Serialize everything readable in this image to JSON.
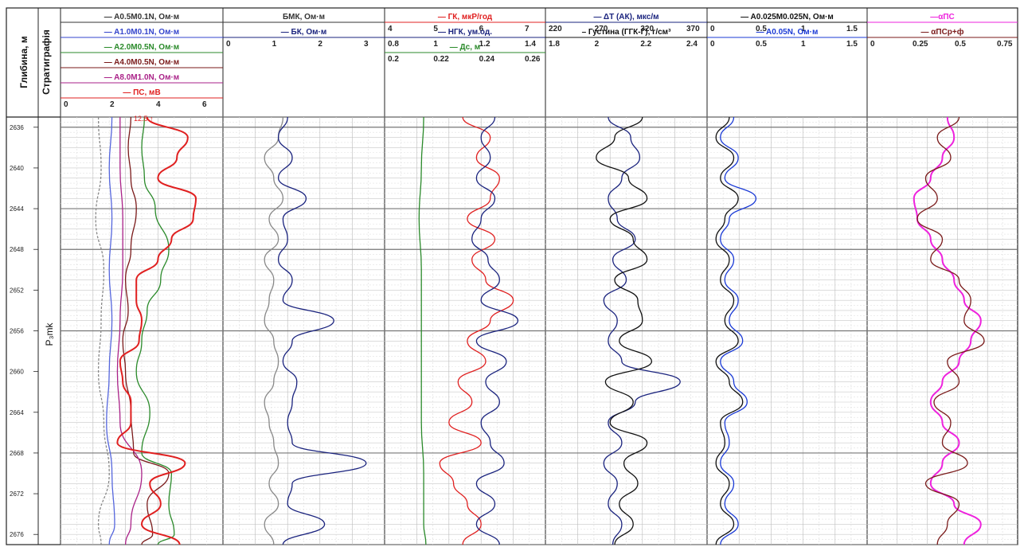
{
  "chart_data": {
    "type": "line",
    "title": "",
    "depth_axis": {
      "label": "Глибина, м",
      "unit": "м",
      "range": [
        2635,
        2677
      ],
      "major_ticks": [
        "2636",
        "2640",
        "2644",
        "2648",
        "2652",
        "2656",
        "2660",
        "2664",
        "2668",
        "2672",
        "2676"
      ],
      "major_tick_values": [
        2636,
        2640,
        2644,
        2648,
        2652,
        2656,
        2660,
        2664,
        2668,
        2672,
        2676
      ],
      "thick_line_depths": [
        2636,
        2644,
        2648,
        2656,
        2668
      ],
      "grid": true
    },
    "stratigraphy": {
      "label": "Стратиграфія",
      "unit_name": "P₃mk"
    },
    "tracks": [
      {
        "id": "track-resistivity",
        "scales": [
          {
            "label": "— A0.5M0.1N, Ом·м",
            "color": "#333333"
          },
          {
            "label": "— A1.0M0.1N, Ом·м",
            "color": "#3344cc"
          },
          {
            "label": "— A2.0M0.5N, Ом·м",
            "color": "#2a8a2a"
          },
          {
            "label": "— A4.0M0.5N, Ом·м",
            "color": "#7a1a1a"
          },
          {
            "label": "— A8.0M1.0N, Ом·м",
            "color": "#aa2288"
          },
          {
            "label": "— ПС, мВ",
            "color": "#e02020",
            "ticks": [
              "0",
              "2",
              "4",
              "6"
            ]
          }
        ],
        "annotation": "12.5 ↑",
        "series": [
          {
            "name": "A0.5M0.1N",
            "color": "#888888",
            "dashed": true,
            "depth": [
              2635,
              2640,
              2645,
              2650,
              2655,
              2660,
              2665,
              2670,
              2675,
              2677
            ],
            "value": [
              1.4,
              1.5,
              1.3,
              1.6,
              1.5,
              1.4,
              1.6,
              1.8,
              1.4,
              1.5
            ]
          },
          {
            "name": "A1.0M0.1N",
            "color": "#5566dd",
            "depth": [
              2635,
              2640,
              2645,
              2650,
              2655,
              2660,
              2665,
              2670,
              2675,
              2677
            ],
            "value": [
              1.9,
              1.8,
              1.9,
              1.8,
              1.9,
              1.8,
              1.7,
              1.9,
              2.0,
              1.8
            ]
          },
          {
            "name": "A2.0M0.5N",
            "color": "#2a8a2a",
            "depth": [
              2635,
              2638,
              2641,
              2644,
              2648,
              2651,
              2654,
              2657,
              2660,
              2664,
              2668,
              2670,
              2673,
              2676,
              2677
            ],
            "value": [
              3.1,
              3.0,
              3.1,
              3.5,
              4.0,
              3.7,
              3.2,
              3.0,
              2.8,
              3.3,
              3.0,
              4.1,
              4.0,
              4.2,
              3.6
            ]
          },
          {
            "name": "A4.0M0.5N",
            "color": "#7a1a1a",
            "depth": [
              2635,
              2638,
              2641,
              2644,
              2648,
              2651,
              2654,
              2657,
              2660,
              2664,
              2668,
              2670,
              2673,
              2676,
              2677
            ],
            "value": [
              2.6,
              2.5,
              2.6,
              2.8,
              2.6,
              2.4,
              2.5,
              2.3,
              2.4,
              2.6,
              2.7,
              4.0,
              3.2,
              3.4,
              3.0
            ]
          },
          {
            "name": "A8.0M1.0N",
            "color": "#aa2288",
            "depth": [
              2635,
              2640,
              2645,
              2650,
              2655,
              2660,
              2665,
              2670,
              2675,
              2677
            ],
            "value": [
              2.2,
              2.2,
              2.3,
              2.3,
              2.2,
              2.1,
              2.2,
              3.0,
              2.6,
              2.4
            ]
          },
          {
            "name": "ПС",
            "color": "#e02020",
            "depth": [
              2635,
              2637,
              2639,
              2641,
              2643,
              2645,
              2647,
              2649,
              2651,
              2653,
              2655,
              2657,
              2659,
              2661,
              2663,
              2665,
              2667,
              2669,
              2671,
              2673,
              2675,
              2677
            ],
            "value": [
              3.2,
              4.7,
              4.3,
              3.6,
              5.0,
              4.9,
              4.1,
              3.6,
              2.8,
              2.8,
              3.0,
              2.9,
              2.2,
              2.3,
              2.6,
              2.6,
              2.1,
              4.6,
              3.3,
              3.7,
              3.0,
              4.4
            ]
          }
        ]
      },
      {
        "id": "track-laterolog",
        "scales": [
          {
            "label": "БМК, Ом·м",
            "color": "#333333"
          },
          {
            "label": "— БК, Ом·м",
            "color": "#1a237e",
            "ticks": [
              "0",
              "1",
              "2",
              "3"
            ]
          }
        ],
        "series": [
          {
            "name": "БМК",
            "color": "#888888",
            "depth": [
              2635,
              2637,
              2639,
              2641,
              2643,
              2645,
              2647,
              2649,
              2651,
              2653,
              2655,
              2657,
              2659,
              2661,
              2663,
              2665,
              2667,
              2669,
              2671,
              2673,
              2675,
              2677
            ],
            "value": [
              1.3,
              1.2,
              0.9,
              1.1,
              1.3,
              1.0,
              1.2,
              0.9,
              1.1,
              1.0,
              0.9,
              1.1,
              1.2,
              1.1,
              0.9,
              1.0,
              1.1,
              1.2,
              1.0,
              1.2,
              0.9,
              1.1
            ]
          },
          {
            "name": "БК",
            "color": "#1a237e",
            "depth": [
              2635,
              2637,
              2639,
              2641,
              2643,
              2645,
              2647,
              2649,
              2651,
              2653,
              2655,
              2657,
              2659,
              2661,
              2663,
              2665,
              2667,
              2669,
              2671,
              2673,
              2675,
              2677
            ],
            "value": [
              1.4,
              1.2,
              1.5,
              1.2,
              1.8,
              1.3,
              1.4,
              1.2,
              1.5,
              1.3,
              2.4,
              1.5,
              1.3,
              1.6,
              1.5,
              1.4,
              1.5,
              3.1,
              1.5,
              1.4,
              2.2,
              1.3
            ]
          }
        ]
      },
      {
        "id": "track-nuclear",
        "scales": [
          {
            "label": "— ГК, мкР/год",
            "color": "#e02020",
            "ticks": [
              "4",
              "5",
              "6",
              "7"
            ]
          },
          {
            "label": "— НГК, ум.од.",
            "color": "#1a237e",
            "ticks": [
              "0.8",
              "1",
              "1.2",
              "1.4"
            ]
          },
          {
            "label": "— Дс, м",
            "color": "#2a8a2a",
            "ticks": [
              "0.2",
              "0.22",
              "0.24",
              "0.26"
            ]
          }
        ],
        "series": [
          {
            "name": "ГК",
            "color": "#e02020",
            "depth": [
              2635,
              2637,
              2639,
              2641,
              2643,
              2645,
              2647,
              2649,
              2651,
              2653,
              2655,
              2657,
              2659,
              2661,
              2663,
              2665,
              2667,
              2669,
              2671,
              2673,
              2675,
              2677
            ],
            "value": [
              5.7,
              6.3,
              6.0,
              6.5,
              6.3,
              5.8,
              6.4,
              5.9,
              6.2,
              6.8,
              6.3,
              5.8,
              6.2,
              5.6,
              5.9,
              5.4,
              6.1,
              5.2,
              5.5,
              5.8,
              6.1,
              5.7
            ]
          },
          {
            "name": "НГК",
            "color": "#1a237e",
            "depth": [
              2635,
              2637,
              2639,
              2641,
              2643,
              2645,
              2647,
              2649,
              2651,
              2653,
              2655,
              2657,
              2659,
              2661,
              2663,
              2665,
              2667,
              2669,
              2671,
              2673,
              2675,
              2677
            ],
            "value": [
              1.28,
              1.22,
              1.26,
              1.2,
              1.28,
              1.22,
              1.18,
              1.25,
              1.3,
              1.22,
              1.38,
              1.2,
              1.33,
              1.24,
              1.3,
              1.22,
              1.26,
              1.32,
              1.2,
              1.28,
              1.2,
              1.3
            ]
          },
          {
            "name": "Дс",
            "color": "#2a8a2a",
            "depth": [
              2635,
              2640,
              2645,
              2650,
              2655,
              2660,
              2665,
              2670,
              2675,
              2677
            ],
            "value": [
              0.217,
              0.216,
              0.215,
              0.216,
              0.216,
              0.216,
              0.216,
              0.217,
              0.217,
              0.218
            ]
          }
        ]
      },
      {
        "id": "track-acoustic-density",
        "scales": [
          {
            "label": "— ΔT (АК), мкс/м",
            "color": "#1a237e",
            "ticks": [
              "220",
              "270",
              "320",
              "370"
            ]
          },
          {
            "label": "– Густина (ГГК-Г), г/см³",
            "color": "#111111",
            "ticks": [
              "1.8",
              "2",
              "2.2",
              "2.4"
            ]
          }
        ],
        "series": [
          {
            "name": "ΔT (АК)",
            "color": "#1a237e",
            "depth": [
              2635,
              2637,
              2639,
              2641,
              2643,
              2645,
              2647,
              2649,
              2651,
              2653,
              2655,
              2657,
              2659,
              2661,
              2663,
              2665,
              2667,
              2669,
              2671,
              2673,
              2675,
              2677
            ],
            "value": [
              290,
              315,
              325,
              305,
              290,
              300,
              320,
              295,
              310,
              285,
              300,
              290,
              305,
              370,
              320,
              290,
              305,
              285,
              300,
              290,
              305,
              295
            ]
          },
          {
            "name": "Густина (ГГК-Г)",
            "color": "#111111",
            "depth": [
              2635,
              2637,
              2639,
              2641,
              2643,
              2645,
              2647,
              2649,
              2651,
              2653,
              2655,
              2657,
              2659,
              2661,
              2663,
              2665,
              2667,
              2669,
              2671,
              2673,
              2675,
              2677
            ],
            "value": [
              2.22,
              2.1,
              2.02,
              2.16,
              2.24,
              2.08,
              2.18,
              2.24,
              2.1,
              2.2,
              2.22,
              2.12,
              2.26,
              2.06,
              2.18,
              2.08,
              2.24,
              2.14,
              2.2,
              2.12,
              2.18,
              2.1
            ]
          }
        ]
      },
      {
        "id": "track-micro",
        "scales": [
          {
            "label": "— A0.025M0.025N, Ом·м",
            "color": "#111111",
            "ticks": [
              "0",
              "0.5",
              "1",
              "1.5"
            ]
          },
          {
            "label": "— A0.05N, Ом·м",
            "color": "#1a3ad6",
            "ticks": [
              "0",
              "0.5",
              "1",
              "1.5"
            ]
          }
        ],
        "series": [
          {
            "name": "A0.025M0.025N",
            "color": "#111111",
            "depth": [
              2635,
              2637,
              2639,
              2641,
              2643,
              2645,
              2647,
              2649,
              2651,
              2653,
              2655,
              2657,
              2659,
              2661,
              2663,
              2665,
              2667,
              2669,
              2671,
              2673,
              2675,
              2677
            ],
            "value": [
              0.25,
              0.1,
              0.3,
              0.15,
              0.35,
              0.2,
              0.1,
              0.25,
              0.15,
              0.3,
              0.2,
              0.35,
              0.1,
              0.25,
              0.4,
              0.15,
              0.2,
              0.1,
              0.25,
              0.15,
              0.3,
              0.1
            ]
          },
          {
            "name": "A0.05N",
            "color": "#1a3ad6",
            "depth": [
              2635,
              2637,
              2639,
              2641,
              2643,
              2645,
              2647,
              2649,
              2651,
              2653,
              2655,
              2657,
              2659,
              2661,
              2663,
              2665,
              2667,
              2669,
              2671,
              2673,
              2675,
              2677
            ],
            "value": [
              0.3,
              0.15,
              0.35,
              0.2,
              0.55,
              0.25,
              0.15,
              0.3,
              0.2,
              0.35,
              0.25,
              0.4,
              0.15,
              0.3,
              0.45,
              0.2,
              0.25,
              0.15,
              0.3,
              0.2,
              0.35,
              0.15
            ]
          }
        ]
      },
      {
        "id": "track-alpha-ps",
        "scales": [
          {
            "label": "—αПС",
            "color": "#ee22dd"
          },
          {
            "label": "— αПСр+ф",
            "color": "#7a1a1a",
            "ticks": [
              "0",
              "0.25",
              "0.5",
              "0.75"
            ]
          }
        ],
        "series": [
          {
            "name": "αПС",
            "color": "#ee22dd",
            "depth": [
              2635,
              2637,
              2639,
              2641,
              2643,
              2645,
              2647,
              2649,
              2651,
              2653,
              2655,
              2657,
              2659,
              2661,
              2663,
              2665,
              2667,
              2669,
              2671,
              2673,
              2675,
              2677
            ],
            "value": [
              0.48,
              0.52,
              0.45,
              0.38,
              0.28,
              0.3,
              0.38,
              0.45,
              0.52,
              0.58,
              0.68,
              0.62,
              0.55,
              0.45,
              0.38,
              0.45,
              0.55,
              0.45,
              0.38,
              0.52,
              0.68,
              0.58
            ]
          },
          {
            "name": "αПСр+ф",
            "color": "#7a1a1a",
            "depth": [
              2635,
              2637,
              2639,
              2641,
              2643,
              2645,
              2647,
              2649,
              2651,
              2653,
              2655,
              2657,
              2659,
              2661,
              2663,
              2665,
              2667,
              2669,
              2671,
              2673,
              2675,
              2677
            ],
            "value": [
              0.55,
              0.42,
              0.5,
              0.35,
              0.42,
              0.3,
              0.45,
              0.38,
              0.55,
              0.62,
              0.58,
              0.7,
              0.48,
              0.55,
              0.4,
              0.5,
              0.45,
              0.6,
              0.35,
              0.55,
              0.48,
              0.42
            ]
          }
        ]
      }
    ]
  }
}
